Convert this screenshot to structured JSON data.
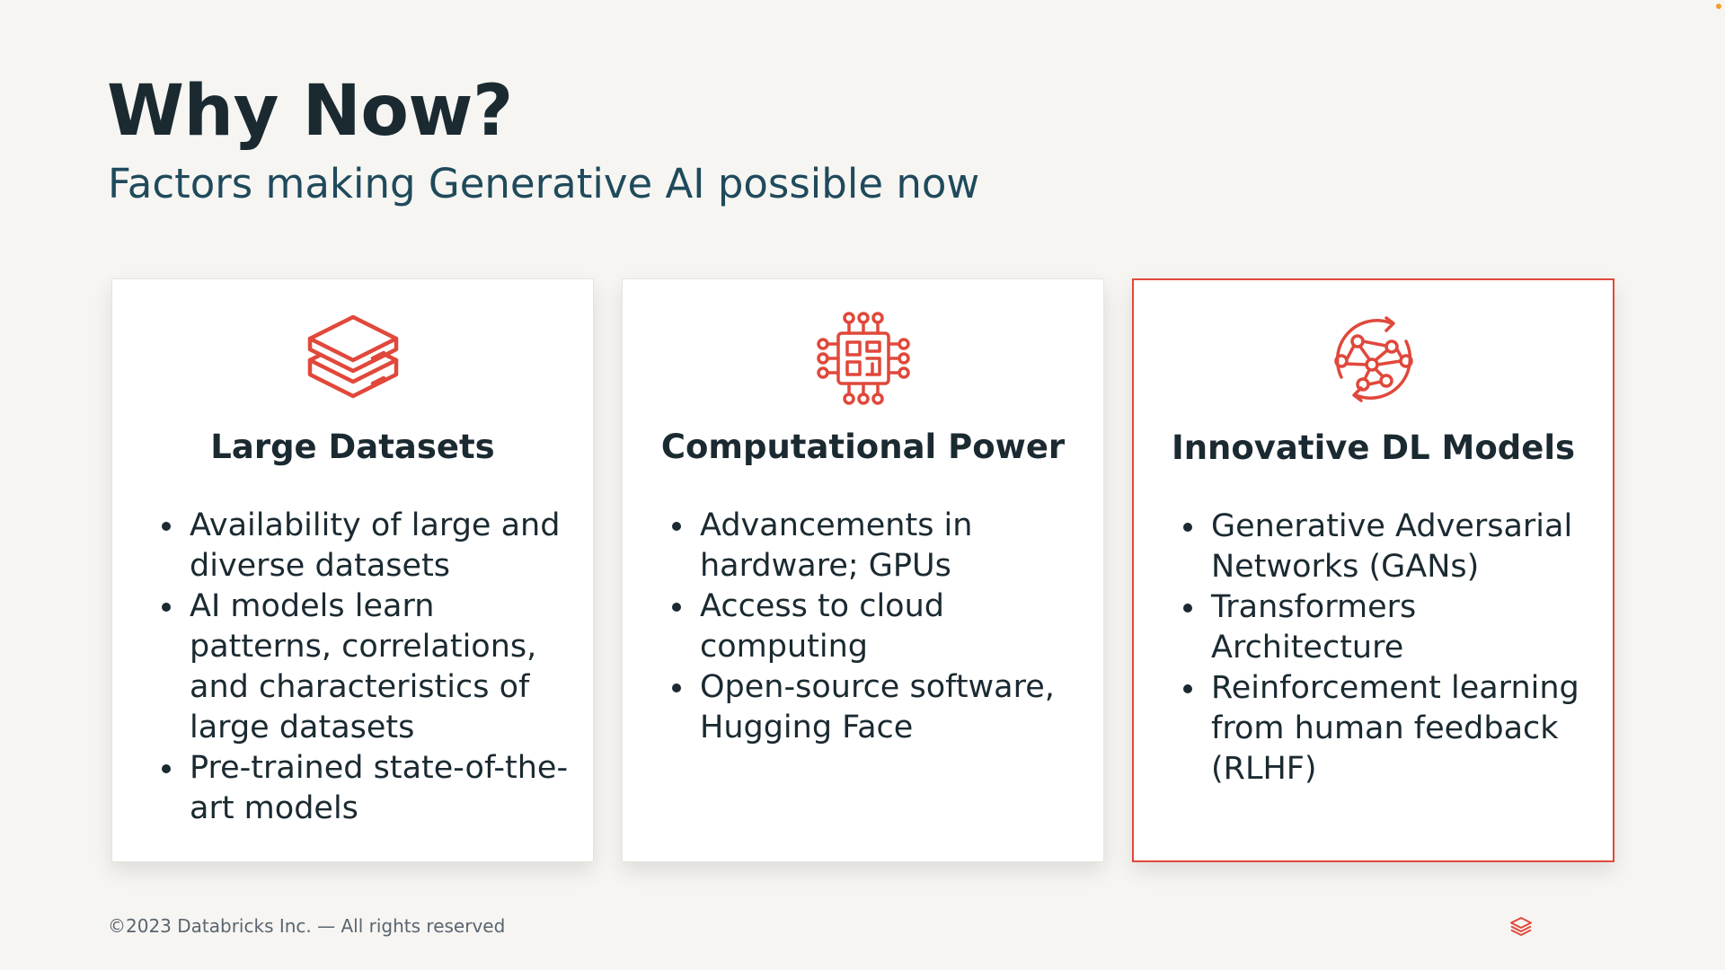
{
  "slide": {
    "title": "Why Now?",
    "subtitle": "Factors making Generative AI possible now"
  },
  "cards": [
    {
      "icon": "stacked-layers-icon",
      "title": "Large Datasets",
      "bullets": [
        "Availability of large and diverse datasets",
        "AI models learn patterns, correlations, and characteristics of large datasets",
        "Pre-trained state-of-the-art models"
      ]
    },
    {
      "icon": "circuit-chip-icon",
      "title": "Computational Power",
      "bullets": [
        "Advancements in hardware; GPUs",
        "Access to cloud computing",
        "Open-source software, Hugging Face"
      ]
    },
    {
      "icon": "neural-network-cycle-icon",
      "title": "Innovative DL Models",
      "bullets": [
        "Generative Adversarial Networks (GANs)",
        "Transformers Architecture",
        "Reinforcement learning from human feedback (RLHF)"
      ]
    }
  ],
  "footer": {
    "copyright": "©2023 Databricks Inc. — All rights reserved",
    "logo": "databricks-logo-icon"
  },
  "colors": {
    "accent": "#e0483b",
    "title": "#1b2a31",
    "subtitle": "#1f4a5c",
    "background": "#f6f5f2"
  }
}
